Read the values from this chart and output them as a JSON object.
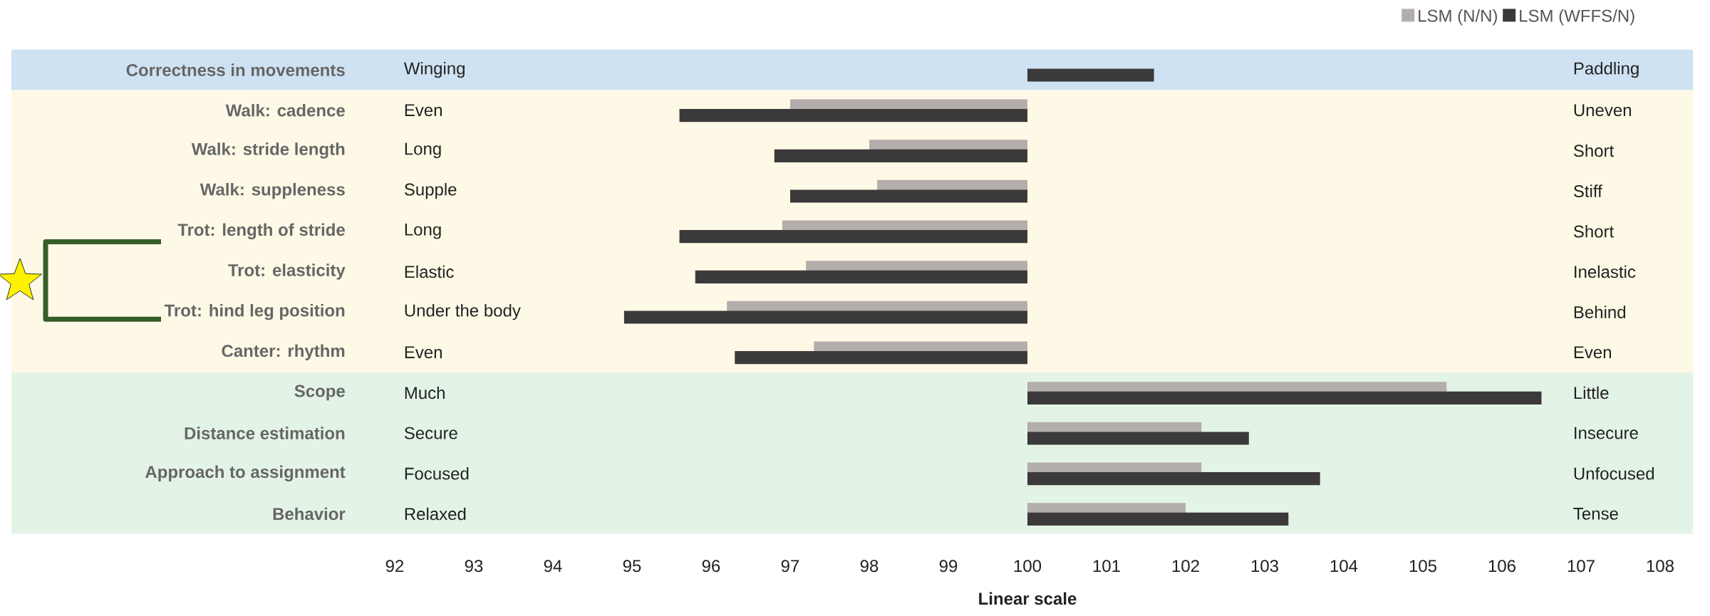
{
  "chart_data": {
    "type": "bar",
    "orientation": "horizontal",
    "categories": [
      "Correctness in movements",
      "Walk: cadence",
      "Walk: stride length",
      "Walk: suppleness",
      "Trot: length of stride",
      "Trot: elasticity",
      "Trot: hind leg position",
      "Canter: rhythm",
      "Scope",
      "Distance estimation",
      "Approach to assignment",
      "Behavior"
    ],
    "series": [
      {
        "name": "LSM (N/N)",
        "color": "#b3adab",
        "base": [
          null,
          100,
          100,
          100,
          100,
          100,
          100,
          100,
          100,
          100,
          100,
          100
        ],
        "values": [
          null,
          -3.0,
          -2.0,
          -1.9,
          -3.1,
          -2.8,
          -3.8,
          -2.7,
          5.3,
          2.2,
          2.2,
          2.0
        ]
      },
      {
        "name": "LSM (WFFS/N)",
        "color": "#3b3939",
        "base": [
          100,
          100,
          100,
          100,
          100,
          100,
          100,
          100,
          100,
          100,
          100,
          100
        ],
        "values": [
          1.6,
          -4.4,
          -3.2,
          -3.0,
          -4.4,
          -4.2,
          -5.1,
          -3.7,
          6.5,
          2.8,
          3.7,
          3.3
        ]
      }
    ],
    "xlim": [
      92,
      108
    ],
    "xticks": [
      92,
      93,
      94,
      95,
      96,
      97,
      98,
      99,
      100,
      101,
      102,
      103,
      104,
      105,
      106,
      107,
      108
    ],
    "xlabel": "Linear scale",
    "legend": "top right",
    "bands": [
      {
        "axis": "y",
        "from": "Correctness in movements",
        "to": "Correctness in movements",
        "label": null,
        "color": "#cfe2f3"
      },
      {
        "axis": "y",
        "from": "Walk: cadence",
        "to": "Canter: rhythm",
        "label": null,
        "color": "#fdf9e6"
      },
      {
        "axis": "y",
        "from": "Scope",
        "to": "Behavior",
        "label": null,
        "color": "#e3f4e6"
      }
    ],
    "annotations": [
      "Winging",
      "Paddling",
      "Even",
      "Uneven",
      "Long",
      "Short",
      "Supple",
      "Stiff",
      "Long",
      "Short",
      "Elastic",
      "Inelastic",
      "Under the body",
      "Behind",
      "Even",
      "Even",
      "Much",
      "Little",
      "Secure",
      "Insecure",
      "Focused",
      "Unfocused",
      "Relaxed",
      "Tense"
    ]
  }
}
